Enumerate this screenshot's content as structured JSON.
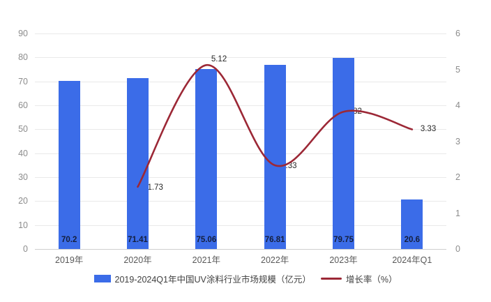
{
  "chart_data": {
    "type": "bar+line",
    "categories": [
      "2019年",
      "2020年",
      "2021年",
      "2022年",
      "2023年",
      "2024年Q1"
    ],
    "series": [
      {
        "name": "2019-2024Q1年中国UV涂料行业市场规模（亿元）",
        "type": "bar",
        "axis": "left",
        "values": [
          70.2,
          71.41,
          75.06,
          76.81,
          79.75,
          20.6
        ],
        "labels": [
          "70.2",
          "71.41",
          "75.06",
          "76.81",
          "79.75",
          "20.6"
        ]
      },
      {
        "name": "增长率（%）",
        "type": "line",
        "axis": "right",
        "values": [
          null,
          1.73,
          5.12,
          2.33,
          3.82,
          3.33
        ],
        "labels": [
          null,
          "1.73",
          "5.12",
          "2.33",
          "3.82",
          "3.33"
        ]
      }
    ],
    "left_axis": {
      "min": 0,
      "max": 90,
      "step": 10
    },
    "right_axis": {
      "min": 0,
      "max": 6,
      "step": 1
    },
    "grid": true,
    "legend_position": "bottom"
  },
  "colors": {
    "bar": "#3b6ce8",
    "line": "#9c2836",
    "grid": "#e9e9e9",
    "baseline": "#cfcfcf",
    "axis_text": "#8c8c8c",
    "category_text": "#595959",
    "bar_label_text": "#141e3c",
    "line_label_text": "#262626"
  }
}
